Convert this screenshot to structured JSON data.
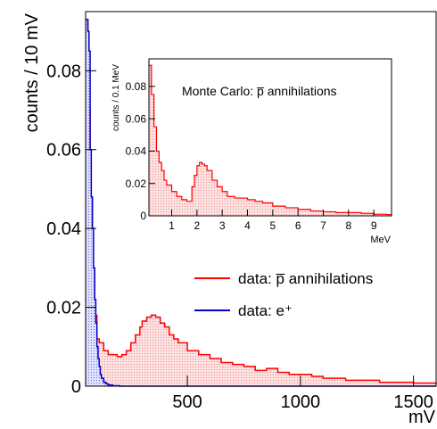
{
  "chart_data": [
    {
      "type": "histogram",
      "ylabel": "counts / 10 mV",
      "xlabel": "mV",
      "xlim": [
        50,
        1600
      ],
      "ylim": [
        0,
        0.095
      ],
      "xticks": [
        500,
        1000,
        1500
      ],
      "yticks": [
        0,
        0.02,
        0.04,
        0.06,
        0.08
      ],
      "xtick_labels": [
        "500",
        "1000",
        "1500"
      ],
      "ytick_labels": [
        "0",
        "0.02",
        "0.04",
        "0.06",
        "0.08"
      ],
      "legend_position": "right-middle",
      "series": [
        {
          "name": "data: p̅ annihilations",
          "color": "#ff0000",
          "fill": "hatched-red",
          "x": [
            50,
            60,
            70,
            80,
            90,
            100,
            110,
            130,
            150,
            170,
            190,
            210,
            230,
            250,
            270,
            290,
            300,
            320,
            340,
            360,
            380,
            400,
            420,
            440,
            460,
            500,
            550,
            600,
            650,
            700,
            750,
            800,
            850,
            900,
            950,
            1000,
            1050,
            1100,
            1150,
            1200,
            1250,
            1300,
            1350,
            1400,
            1450,
            1500,
            1550,
            1600
          ],
          "y": [
            0.093,
            0.07,
            0.048,
            0.03,
            0.018,
            0.012,
            0.011,
            0.009,
            0.008,
            0.008,
            0.0075,
            0.008,
            0.009,
            0.011,
            0.013,
            0.015,
            0.0165,
            0.0175,
            0.018,
            0.0175,
            0.016,
            0.015,
            0.013,
            0.012,
            0.011,
            0.009,
            0.008,
            0.007,
            0.006,
            0.0055,
            0.005,
            0.004,
            0.0045,
            0.0035,
            0.003,
            0.003,
            0.0025,
            0.002,
            0.002,
            0.0015,
            0.0015,
            0.0015,
            0.001,
            0.001,
            0.001,
            0.0008,
            0.0008,
            0.0005
          ]
        },
        {
          "name": "data: e⁺",
          "color": "#0000cc",
          "fill": "hatched-blue",
          "x": [
            50,
            55,
            60,
            65,
            70,
            75,
            80,
            85,
            90,
            95,
            100,
            105,
            110,
            115,
            120,
            130,
            140,
            150,
            170,
            200,
            300,
            500,
            1000,
            1600
          ],
          "y": [
            0.093,
            0.093,
            0.09,
            0.085,
            0.06,
            0.048,
            0.04,
            0.03,
            0.022,
            0.016,
            0.01,
            0.007,
            0.005,
            0.003,
            0.002,
            0.001,
            0.0006,
            0.0003,
            0.0001,
            0,
            0,
            0,
            0,
            0
          ]
        }
      ]
    },
    {
      "type": "histogram",
      "title": "Monte Carlo: p̅ annihilations",
      "ylabel": "counts / 0.1 MeV",
      "xlabel": "MeV",
      "xlim": [
        0.1,
        9.7
      ],
      "ylim": [
        0,
        0.097
      ],
      "xticks": [
        1,
        2,
        3,
        4,
        5,
        6,
        7,
        8,
        9
      ],
      "yticks": [
        0,
        0.02,
        0.04,
        0.06,
        0.08
      ],
      "xtick_labels": [
        "1",
        "2",
        "3",
        "4",
        "5",
        "6",
        "7",
        "8",
        "9"
      ],
      "ytick_labels": [
        "0",
        "0.02",
        "0.04",
        "0.06",
        "0.08"
      ],
      "series": [
        {
          "color": "#ff0000",
          "fill": "hatched-red",
          "x": [
            0.1,
            0.2,
            0.3,
            0.4,
            0.5,
            0.6,
            0.7,
            0.8,
            1.0,
            1.2,
            1.4,
            1.6,
            1.8,
            1.9,
            2.0,
            2.1,
            2.2,
            2.3,
            2.4,
            2.6,
            2.8,
            3.0,
            3.2,
            3.5,
            3.8,
            4.0,
            4.3,
            4.6,
            5.0,
            5.5,
            6.0,
            6.5,
            7.0,
            7.5,
            8.0,
            8.5,
            9.0,
            9.5,
            9.7
          ],
          "y": [
            0.093,
            0.075,
            0.055,
            0.04,
            0.033,
            0.028,
            0.022,
            0.019,
            0.015,
            0.012,
            0.01,
            0.009,
            0.018,
            0.025,
            0.031,
            0.033,
            0.032,
            0.031,
            0.028,
            0.022,
            0.018,
            0.015,
            0.012,
            0.011,
            0.011,
            0.01,
            0.009,
            0.008,
            0.006,
            0.005,
            0.004,
            0.003,
            0.0025,
            0.002,
            0.002,
            0.0015,
            0.001,
            0.0008,
            0.0005
          ]
        }
      ]
    }
  ]
}
